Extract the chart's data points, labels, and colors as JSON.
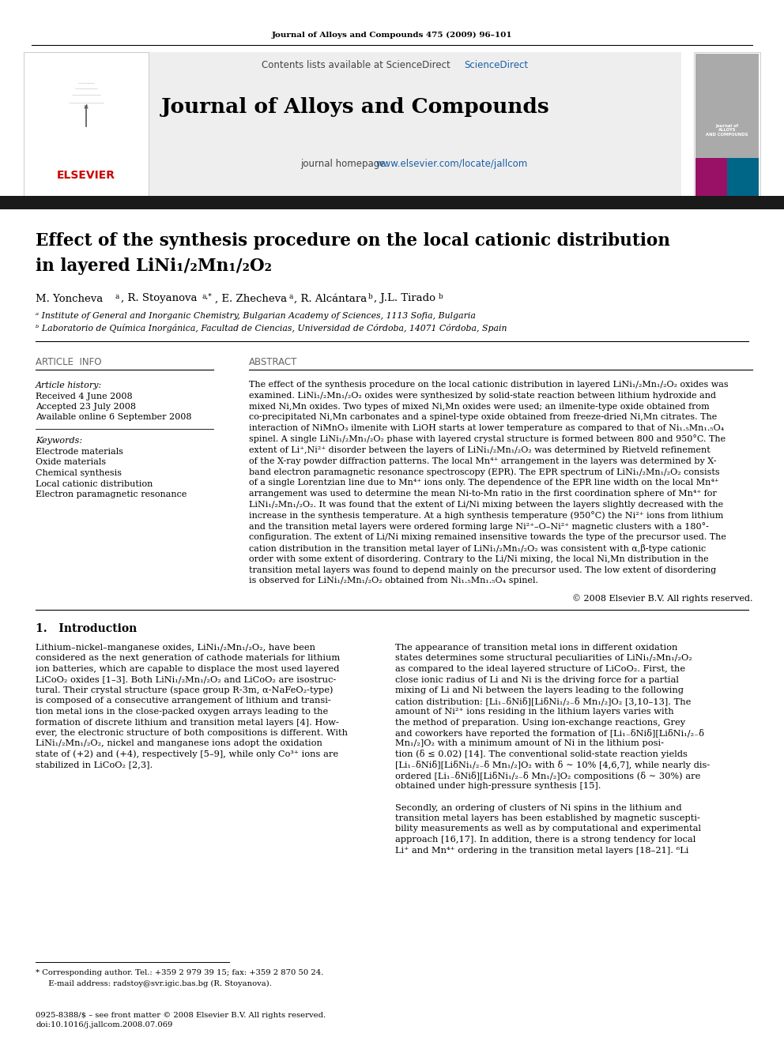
{
  "journal_header": "Journal of Alloys and Compounds 475 (2009) 96–101",
  "contents_text": "Contents lists available at ScienceDirect",
  "journal_name": "Journal of Alloys and Compounds",
  "journal_homepage_prefix": "journal homepage: ",
  "journal_homepage_link": "www.elsevier.com/locate/jallcom",
  "title_line1": "Effect of the synthesis procedure on the local cationic distribution",
  "title_line2": "in layered LiNi₁/₂Mn₁/₂O₂",
  "affiliation_a": "ᵃ Institute of General and Inorganic Chemistry, Bulgarian Academy of Sciences, 1113 Sofia, Bulgaria",
  "affiliation_b": "ᵇ Laboratorio de Química Inorgánica, Facultad de Ciencias, Universidad de Córdoba, 14071 Córdoba, Spain",
  "section_article_info": "ARTICLE  INFO",
  "section_abstract": "ABSTRACT",
  "article_history_label": "Article history:",
  "received": "Received 4 June 2008",
  "accepted": "Accepted 23 July 2008",
  "available": "Available online 6 September 2008",
  "keywords_label": "Keywords:",
  "keywords": [
    "Electrode materials",
    "Oxide materials",
    "Chemical synthesis",
    "Local cationic distribution",
    "Electron paramagnetic resonance"
  ],
  "copyright": "© 2008 Elsevier B.V. All rights reserved.",
  "intro_heading": "1.   Introduction",
  "footnote_line1": "* Corresponding author. Tel.: +359 2 979 39 15; fax: +359 2 870 50 24.",
  "footnote_line2": "  E-mail address: radstoy@svr.igic.bas.bg (R. Stoyanova).",
  "issn": "0925-8388/$ – see front matter © 2008 Elsevier B.V. All rights reserved.",
  "doi": "doi:10.1016/j.jallcom.2008.07.069",
  "bg_color": "#ffffff",
  "black_bar_color": "#1a1a1a",
  "blue_link_color": "#1a5fa8",
  "red_elsevier_color": "#cc0000",
  "section_header_color": "#666666",
  "abstract_lines": [
    "The effect of the synthesis procedure on the local cationic distribution in layered LiNi₁/₂Mn₁/₂O₂ oxides was",
    "examined. LiNi₁/₂Mn₁/₂O₂ oxides were synthesized by solid-state reaction between lithium hydroxide and",
    "mixed Ni,Mn oxides. Two types of mixed Ni,Mn oxides were used; an ilmenite-type oxide obtained from",
    "co-precipitated Ni,Mn carbonates and a spinel-type oxide obtained from freeze-dried Ni,Mn citrates. The",
    "interaction of NiMnO₃ ilmenite with LiOH starts at lower temperature as compared to that of Ni₁.₅Mn₁.₅O₄",
    "spinel. A single LiNi₁/₂Mn₁/₂O₂ phase with layered crystal structure is formed between 800 and 950°C. The",
    "extent of Li⁺,Ni²⁺ disorder between the layers of LiNi₁/₂Mn₁/₂O₂ was determined by Rietveld refinement",
    "of the X-ray powder diffraction patterns. The local Mn⁴⁺ arrangement in the layers was determined by X-",
    "band electron paramagnetic resonance spectroscopy (EPR). The EPR spectrum of LiNi₁/₂Mn₁/₂O₂ consists",
    "of a single Lorentzian line due to Mn⁴⁺ ions only. The dependence of the EPR line width on the local Mn⁴⁺",
    "arrangement was used to determine the mean Ni-to-Mn ratio in the first coordination sphere of Mn⁴⁺ for",
    "LiNi₁/₂Mn₁/₂O₂. It was found that the extent of Li/Ni mixing between the layers slightly decreased with the",
    "increase in the synthesis temperature. At a high synthesis temperature (950°C) the Ni²⁺ ions from lithium",
    "and the transition metal layers were ordered forming large Ni²⁺–O–Ni²⁺ magnetic clusters with a 180°-",
    "configuration. The extent of Li/Ni mixing remained insensitive towards the type of the precursor used. The",
    "cation distribution in the transition metal layer of LiNi₁/₂Mn₁/₂O₂ was consistent with α,β-type cationic",
    "order with some extent of disordering. Contrary to the Li/Ni mixing, the local Ni,Mn distribution in the",
    "transition metal layers was found to depend mainly on the precursor used. The low extent of disordering",
    "is observed for LiNi₁/₂Mn₁/₂O₂ obtained from Ni₁.₅Mn₁.₅O₄ spinel."
  ],
  "intro1_lines": [
    "Lithium–nickel–manganese oxides, LiNi₁/₂Mn₁/₂O₂, have been",
    "considered as the next generation of cathode materials for lithium",
    "ion batteries, which are capable to displace the most used layered",
    "LiCoO₂ oxides [1–3]. Both LiNi₁/₂Mn₁/₂O₂ and LiCoO₂ are isostruc-",
    "tural. Their crystal structure (space group R-3m, α-NaFeO₂-type)",
    "is composed of a consecutive arrangement of lithium and transi-",
    "tion metal ions in the close-packed oxygen arrays leading to the",
    "formation of discrete lithium and transition metal layers [4]. How-",
    "ever, the electronic structure of both compositions is different. With",
    "LiNi₁/₂Mn₁/₂O₂, nickel and manganese ions adopt the oxidation",
    "state of (+2) and (+4), respectively [5–9], while only Co³⁺ ions are",
    "stabilized in LiCoO₂ [2,3]."
  ],
  "intro2_lines": [
    "The appearance of transition metal ions in different oxidation",
    "states determines some structural peculiarities of LiNi₁/₂Mn₁/₂O₂",
    "as compared to the ideal layered structure of LiCoO₂. First, the",
    "close ionic radius of Li and Ni is the driving force for a partial",
    "mixing of Li and Ni between the layers leading to the following",
    "cation distribution: [Li₁₋δNiδ][LiδNi₁/₂₋δ Mn₁/₂]O₂ [3,10–13]. The",
    "amount of Ni²⁺ ions residing in the lithium layers varies with",
    "the method of preparation. Using ion-exchange reactions, Grey",
    "and coworkers have reported the formation of [Li₁₋δNiδ][LiδNi₁/₂₋δ",
    "Mn₁/₂]O₂ with a minimum amount of Ni in the lithium posi-",
    "tion (δ ≤ 0.02) [14]. The conventional solid-state reaction yields",
    "[Li₁₋δNiδ][LiδNi₁/₂₋δ Mn₁/₂]O₂ with δ ∼ 10% [4,6,7], while nearly dis-",
    "ordered [Li₁₋δNiδ][LiδNi₁/₂₋δ Mn₁/₂]O₂ compositions (δ ∼ 30%) are",
    "obtained under high-pressure synthesis [15].",
    "",
    "Secondly, an ordering of clusters of Ni spins in the lithium and",
    "transition metal layers has been established by magnetic suscepti-",
    "bility measurements as well as by computational and experimental",
    "approach [16,17]. In addition, there is a strong tendency for local",
    "Li⁺ and Mn⁴⁺ ordering in the transition metal layers [18–21]. ⁶Li"
  ]
}
